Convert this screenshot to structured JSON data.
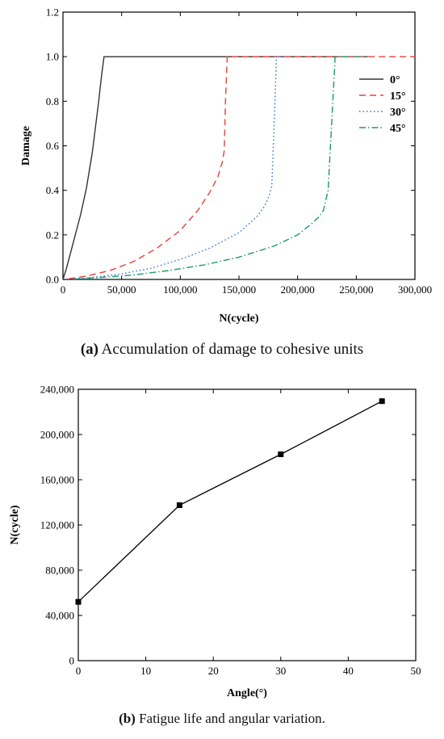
{
  "chart_data": [
    {
      "type": "line",
      "xlabel": "N(cycle)",
      "ylabel": "Damage",
      "xlim": [
        0,
        300000
      ],
      "ylim": [
        0,
        1.2
      ],
      "x_ticks": [
        "0",
        "50,000",
        "100,000",
        "150,000",
        "200,000",
        "250,000",
        "300,000"
      ],
      "x_tick_values": [
        0,
        50000,
        100000,
        150000,
        200000,
        250000,
        300000
      ],
      "y_ticks": [
        "0.0",
        "0.2",
        "0.4",
        "0.6",
        "0.8",
        "1.0",
        "1.2"
      ],
      "y_tick_values": [
        0,
        0.2,
        0.4,
        0.6,
        0.8,
        1.0,
        1.2
      ],
      "grid": false,
      "legend_position": "right",
      "series": [
        {
          "name": "0°",
          "color": "#333333",
          "dash": "solid",
          "x": [
            0,
            3000,
            6000,
            10000,
            15000,
            20000,
            25000,
            30000,
            33000,
            35000,
            35500,
            40000,
            260000
          ],
          "y": [
            0,
            0.05,
            0.11,
            0.19,
            0.29,
            0.41,
            0.57,
            0.78,
            0.92,
            1.0,
            1.0,
            1.0,
            1.0
          ]
        },
        {
          "name": "15°",
          "color": "#e8413c",
          "dash": "dashed",
          "x": [
            5000,
            20000,
            40000,
            60000,
            80000,
            100000,
            115000,
            125000,
            132000,
            136000,
            137500,
            138500,
            140000,
            300000
          ],
          "y": [
            0.003,
            0.015,
            0.04,
            0.08,
            0.14,
            0.22,
            0.31,
            0.39,
            0.46,
            0.53,
            0.58,
            0.8,
            1.0,
            1.0
          ]
        },
        {
          "name": "30°",
          "color": "#2a6fd6",
          "dash": "dotted",
          "x": [
            10000,
            30000,
            50000,
            75000,
            100000,
            125000,
            150000,
            165000,
            172000,
            176000,
            178000,
            180000,
            182000,
            190000
          ],
          "y": [
            0.003,
            0.012,
            0.025,
            0.05,
            0.09,
            0.14,
            0.21,
            0.28,
            0.33,
            0.38,
            0.42,
            0.7,
            1.0,
            1.0
          ]
        },
        {
          "name": "45°",
          "color": "#1a9a6a",
          "dash": "dashdot",
          "x": [
            10000,
            30000,
            60000,
            90000,
            120000,
            150000,
            180000,
            200000,
            212000,
            218000,
            222000,
            226000,
            228000,
            230000,
            232000,
            260000
          ],
          "y": [
            0.002,
            0.008,
            0.02,
            0.04,
            0.065,
            0.1,
            0.15,
            0.2,
            0.25,
            0.28,
            0.31,
            0.4,
            0.6,
            0.8,
            1.0,
            1.0
          ]
        }
      ]
    },
    {
      "type": "line",
      "xlabel": "Angle(°)",
      "ylabel": "N(cycle)",
      "xlim": [
        0,
        50
      ],
      "ylim": [
        0,
        240000
      ],
      "x_ticks": [
        "0",
        "10",
        "20",
        "30",
        "40",
        "50"
      ],
      "x_tick_values": [
        0,
        10,
        20,
        30,
        40,
        50
      ],
      "y_ticks": [
        "0",
        "40,000",
        "80,000",
        "120,000",
        "160,000",
        "200,000",
        "240,000"
      ],
      "y_tick_values": [
        0,
        40000,
        80000,
        120000,
        160000,
        200000,
        240000
      ],
      "grid": false,
      "color": "#000000",
      "marker": "square",
      "x": [
        0,
        15,
        30,
        45
      ],
      "y": [
        52000,
        137500,
        182500,
        229500
      ]
    }
  ],
  "captions": {
    "a_tag": "(a)",
    "a_text": " Accumulation of damage to cohesive units",
    "b_tag": "(b)",
    "b_text": " Fatigue life and angular variation."
  }
}
